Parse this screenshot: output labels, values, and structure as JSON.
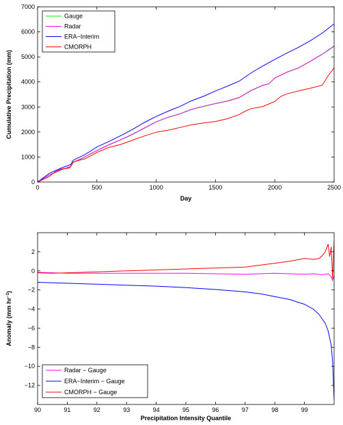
{
  "chart_data": [
    {
      "type": "line",
      "title": "",
      "xlabel": "Day",
      "ylabel": "Cumulative Precipitation (mm)",
      "xlim": [
        0,
        2500
      ],
      "ylim": [
        0,
        7000
      ],
      "xticks": [
        "0",
        "500",
        "1000",
        "1500",
        "2000",
        "2500"
      ],
      "yticks": [
        "0",
        "1000",
        "2000",
        "3000",
        "4000",
        "5000",
        "6000",
        "7000"
      ],
      "grid": false,
      "legend_position": "top-left",
      "series": [
        {
          "name": "Gauge",
          "color": "#00ff00",
          "x": [
            0,
            100,
            200,
            280,
            300,
            400,
            500,
            600,
            700,
            800,
            900,
            1000,
            1100,
            1200,
            1300,
            1400,
            1500,
            1600,
            1700,
            1800,
            1900,
            1950,
            2000,
            2100,
            2200,
            2300,
            2400,
            2500
          ],
          "y": [
            0,
            280,
            480,
            620,
            780,
            1000,
            1250,
            1480,
            1680,
            1900,
            2150,
            2400,
            2580,
            2720,
            2900,
            3020,
            3130,
            3230,
            3370,
            3650,
            3860,
            3920,
            4150,
            4380,
            4550,
            4820,
            5100,
            5420
          ]
        },
        {
          "name": "Radar",
          "color": "#ff00ff",
          "x": [
            0,
            100,
            200,
            280,
            300,
            400,
            500,
            600,
            700,
            800,
            900,
            1000,
            1100,
            1200,
            1300,
            1400,
            1500,
            1600,
            1700,
            1800,
            1900,
            1950,
            2000,
            2100,
            2200,
            2300,
            2400,
            2500
          ],
          "y": [
            0,
            290,
            490,
            630,
            790,
            1010,
            1260,
            1490,
            1690,
            1910,
            2160,
            2410,
            2590,
            2730,
            2910,
            3030,
            3140,
            3240,
            3380,
            3660,
            3870,
            3930,
            4160,
            4390,
            4560,
            4830,
            5110,
            5440
          ]
        },
        {
          "name": "ERA−Interim",
          "color": "#0000ff",
          "x": [
            0,
            100,
            200,
            280,
            300,
            400,
            500,
            600,
            700,
            800,
            900,
            1000,
            1100,
            1200,
            1300,
            1400,
            1500,
            1600,
            1700,
            1800,
            1900,
            2000,
            2100,
            2200,
            2300,
            2400,
            2500
          ],
          "y": [
            0,
            350,
            560,
            700,
            870,
            1100,
            1400,
            1620,
            1850,
            2100,
            2380,
            2620,
            2830,
            3020,
            3250,
            3430,
            3640,
            3830,
            4030,
            4360,
            4640,
            4900,
            5150,
            5380,
            5650,
            5950,
            6320
          ]
        },
        {
          "name": "CMORPH",
          "color": "#ff0000",
          "x": [
            0,
            100,
            150,
            200,
            270,
            300,
            400,
            450,
            500,
            600,
            700,
            800,
            900,
            1000,
            1100,
            1200,
            1300,
            1400,
            1500,
            1600,
            1700,
            1750,
            1800,
            1900,
            2000,
            2050,
            2100,
            2200,
            2300,
            2400,
            2450,
            2500
          ],
          "y": [
            0,
            220,
            420,
            520,
            560,
            800,
            930,
            1050,
            1180,
            1380,
            1500,
            1670,
            1840,
            1990,
            2070,
            2180,
            2290,
            2360,
            2420,
            2530,
            2700,
            2830,
            2930,
            3020,
            3220,
            3420,
            3520,
            3640,
            3750,
            3870,
            4250,
            4560
          ]
        }
      ]
    },
    {
      "type": "line",
      "title": "",
      "xlabel": "Precipitation Intensity Quantile",
      "ylabel": "Anomaly (mm hr",
      "ylabel_sup": "−1",
      "ylabel_end": ")",
      "xlim": [
        90,
        100
      ],
      "ylim": [
        -14,
        4
      ],
      "xticks": [
        "90",
        "91",
        "92",
        "93",
        "94",
        "95",
        "96",
        "97",
        "98",
        "99"
      ],
      "yticks": [
        "−12",
        "−10",
        "−8",
        "−6",
        "−4",
        "−2",
        "0",
        "2"
      ],
      "grid": false,
      "legend_position": "bottom-left",
      "series": [
        {
          "name": "Radar − Gauge",
          "color": "#ff00ff",
          "x": [
            90,
            90.5,
            91,
            92,
            93,
            94,
            95,
            96,
            97,
            97.5,
            98,
            98.5,
            99,
            99.3,
            99.6,
            99.8,
            99.9,
            99.95,
            100
          ],
          "y": [
            -0.15,
            -0.2,
            -0.25,
            -0.25,
            -0.25,
            -0.25,
            -0.25,
            -0.3,
            -0.35,
            -0.3,
            -0.25,
            -0.3,
            -0.35,
            -0.3,
            -0.4,
            -0.3,
            -0.6,
            -1.0,
            -0.5
          ]
        },
        {
          "name": "ERA−Interim − Gauge",
          "color": "#0000ff",
          "x": [
            90,
            91,
            92,
            93,
            94,
            95,
            96,
            97,
            97.5,
            98,
            98.5,
            99,
            99.3,
            99.5,
            99.7,
            99.8,
            99.9,
            99.95,
            100
          ],
          "y": [
            -1.2,
            -1.3,
            -1.4,
            -1.5,
            -1.6,
            -1.75,
            -1.95,
            -2.2,
            -2.4,
            -2.7,
            -3.0,
            -3.5,
            -4.0,
            -4.6,
            -5.5,
            -6.3,
            -7.8,
            -9.5,
            -13.5
          ]
        },
        {
          "name": "CMORPH − Gauge",
          "color": "#ff0000",
          "x": [
            90,
            90.5,
            91,
            92,
            93,
            93.5,
            94,
            95,
            96,
            97,
            97.5,
            98,
            98.5,
            99,
            99.3,
            99.5,
            99.6,
            99.7,
            99.8,
            99.85,
            99.9,
            99.95,
            100
          ],
          "y": [
            -0.2,
            -0.25,
            -0.2,
            -0.1,
            0.0,
            0.05,
            0.1,
            0.2,
            0.3,
            0.4,
            0.6,
            0.8,
            1.0,
            1.3,
            1.2,
            1.3,
            1.6,
            2.0,
            2.8,
            1.5,
            2.5,
            -0.8,
            3.2
          ]
        }
      ]
    }
  ]
}
